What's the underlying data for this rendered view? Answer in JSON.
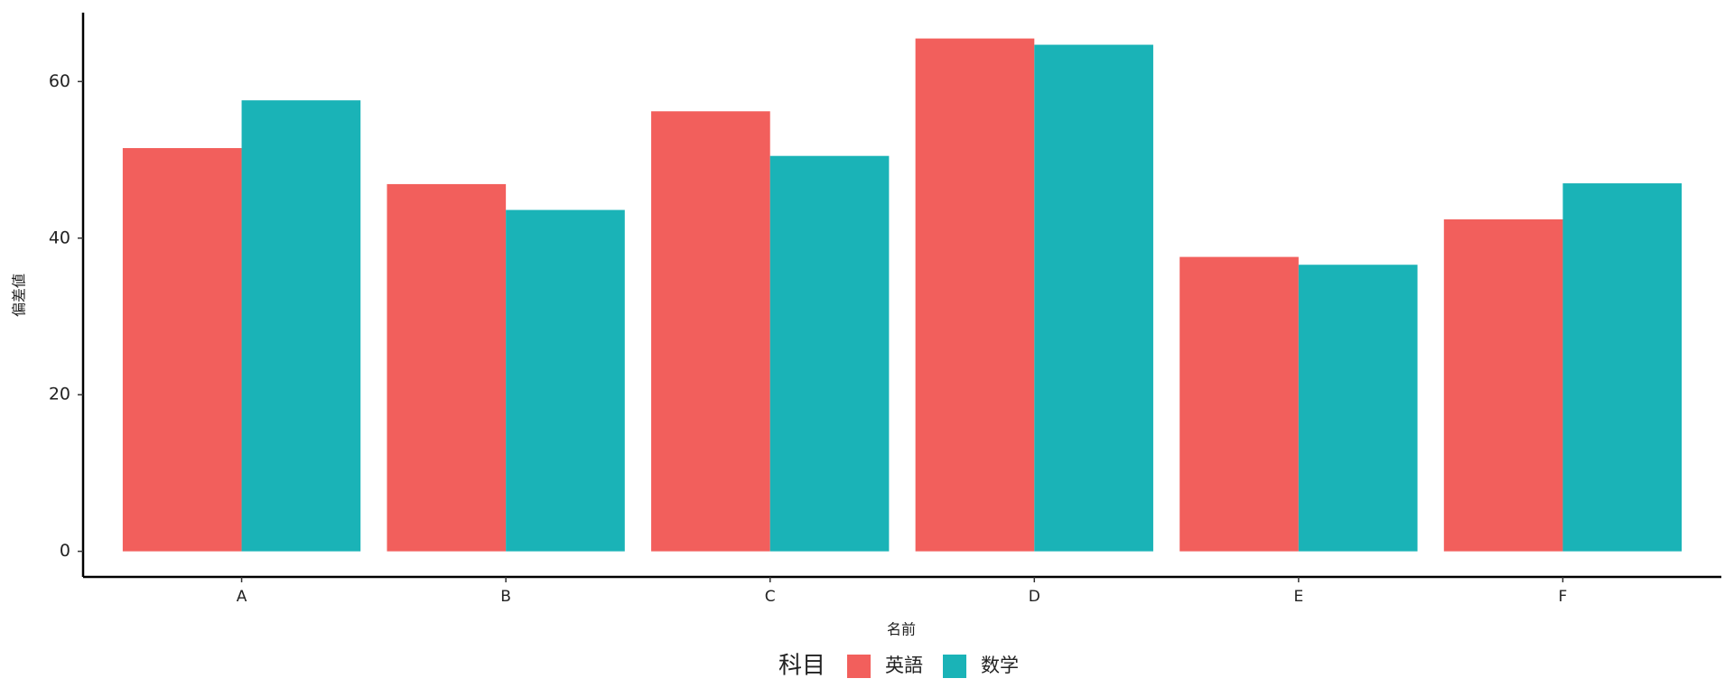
{
  "chart_data": {
    "type": "bar",
    "x_label": "名前",
    "y_label": "偏差値",
    "legend_title": "科目",
    "categories": [
      "A",
      "B",
      "C",
      "D",
      "E",
      "F"
    ],
    "series": [
      {
        "name": "英語",
        "color": "#F25F5C",
        "values": [
          51.5,
          46.9,
          56.2,
          65.5,
          37.6,
          42.4
        ]
      },
      {
        "name": "数学",
        "color": "#1AB3B7",
        "values": [
          57.6,
          43.6,
          50.5,
          64.7,
          36.6,
          47.0
        ]
      }
    ],
    "ylim": [
      -3.27,
      68.8
    ],
    "yticks": [
      0,
      20,
      40,
      60
    ],
    "grid": false
  }
}
